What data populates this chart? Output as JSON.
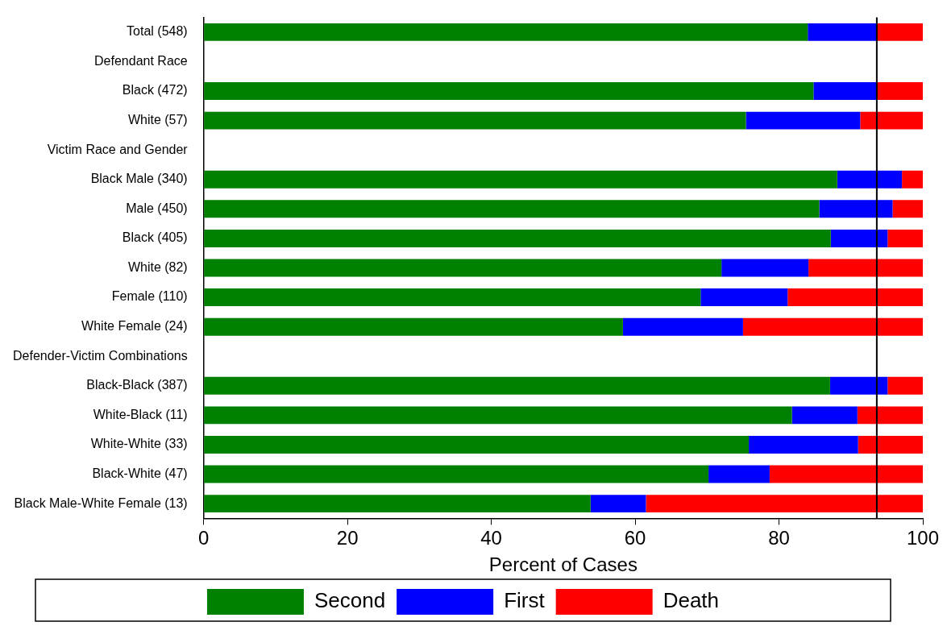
{
  "chart_data": {
    "type": "bar",
    "orientation": "horizontal",
    "stacked": true,
    "categories": [
      "Total (548)",
      "Defendant Race",
      "Black (472)",
      "White (57)",
      "Victim Race and Gender",
      "Black Male (340)",
      "Male (450)",
      "Black (405)",
      "White (82)",
      "Female (110)",
      "White Female (24)",
      "Defender-Victim Combinations",
      "Black-Black (387)",
      "White-Black (11)",
      "White-White (33)",
      "Black-White (47)",
      "Black Male-White Female (13)"
    ],
    "series": [
      {
        "name": "Second",
        "color": "#008000",
        "values": [
          84.0,
          null,
          84.8,
          75.4,
          null,
          88.1,
          85.6,
          87.2,
          72.0,
          69.1,
          58.3,
          null,
          87.1,
          81.8,
          75.8,
          70.2,
          53.8
        ]
      },
      {
        "name": "First",
        "color": "#0000ff",
        "values": [
          9.6,
          null,
          8.8,
          15.9,
          null,
          9.0,
          10.2,
          7.9,
          12.1,
          12.1,
          16.7,
          null,
          8.0,
          9.1,
          15.2,
          8.5,
          7.7
        ]
      },
      {
        "name": "Death",
        "color": "#ff0000",
        "values": [
          6.4,
          null,
          6.4,
          8.7,
          null,
          2.9,
          4.2,
          4.9,
          15.9,
          18.8,
          25.0,
          null,
          4.9,
          9.1,
          9.0,
          21.3,
          38.5
        ]
      }
    ],
    "xlabel": "Percent of Cases",
    "xlim": [
      0,
      100
    ],
    "xticks": [
      0,
      20,
      40,
      60,
      80,
      100
    ],
    "ref_lines": [
      {
        "axis": "x",
        "value": 93.6,
        "color": "#000000"
      }
    ],
    "grid": false,
    "legend": "bottom"
  }
}
